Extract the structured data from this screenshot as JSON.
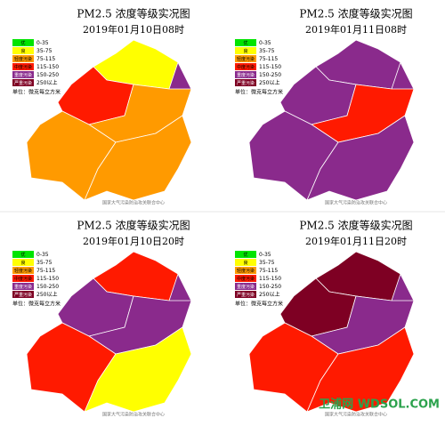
{
  "panels": [
    {
      "title": "PM2.5 浓度等级实况图",
      "time": "2019年01月10日08时"
    },
    {
      "title": "PM2.5 浓度等级实况图",
      "time": "2019年01月11日08时"
    },
    {
      "title": "PM2.5 浓度等级实况图",
      "time": "2019年01月10日20时"
    },
    {
      "title": "PM2.5 浓度等级实况图",
      "time": "2019年01月11日20时"
    }
  ],
  "legend": {
    "items": [
      {
        "name": "优",
        "range": "0-35",
        "color": "#00e400"
      },
      {
        "name": "良",
        "range": "35-75",
        "color": "#ffff00"
      },
      {
        "name": "轻度污染",
        "range": "75-115",
        "color": "#ff9a00"
      },
      {
        "name": "中度污染",
        "range": "115-150",
        "color": "#ff1a00"
      },
      {
        "name": "重度污染",
        "range": "150-250",
        "color": "#8a2a8c"
      },
      {
        "name": "严重污染",
        "range": "250以上",
        "color": "#7e0023"
      }
    ],
    "unit": "单位：微克每立方米"
  },
  "source": "国家大气污染防治攻关联合中心",
  "watermark": "卫浦网 WDSOL.COM"
}
